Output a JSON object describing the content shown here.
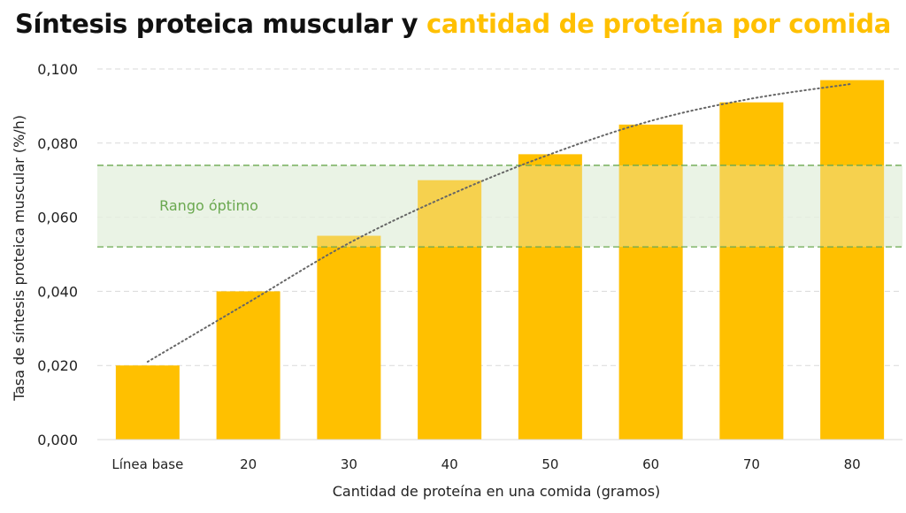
{
  "title": {
    "part1": "Síntesis proteica muscular y ",
    "part2": "cantidad de proteína por comida"
  },
  "colors": {
    "bar": "#FFC000",
    "accent": "#FFC000",
    "band_fill": "#e6f0df",
    "band_line": "#6aa84f",
    "trend": "#666666",
    "grid": "#d9d9d9"
  },
  "chart_data": {
    "type": "bar",
    "categories": [
      "Línea base",
      "20",
      "30",
      "40",
      "50",
      "60",
      "70",
      "80"
    ],
    "values": [
      0.02,
      0.04,
      0.055,
      0.07,
      0.077,
      0.085,
      0.091,
      0.097
    ],
    "xlabel": "Cantidad de proteína en una comida (gramos)",
    "ylabel": "Tasa de síntesis proteica muscular (%/h)",
    "ylim": [
      0,
      0.1
    ],
    "yticks": [
      "0,000",
      "0,020",
      "0,040",
      "0,060",
      "0,080",
      "0,100"
    ],
    "grid": true,
    "trendline": {
      "style": "dotted",
      "values": [
        0.021,
        0.037,
        0.053,
        0.066,
        0.077,
        0.086,
        0.092,
        0.096
      ]
    },
    "band": {
      "label": "Rango óptimo",
      "y_low": 0.052,
      "y_high": 0.074
    }
  }
}
